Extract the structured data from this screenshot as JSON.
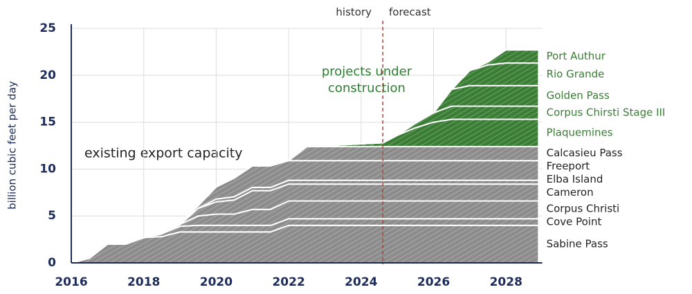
{
  "chart_data": {
    "type": "stacked_area",
    "y_label": "billion cubic feet per day",
    "annotations": {
      "history": "history",
      "forecast": "forecast",
      "existing": "existing export capacity",
      "construction": "projects under construction"
    },
    "forecast_start": 2024.6,
    "xlim": [
      2016,
      2029
    ],
    "xticks": [
      2016,
      2018,
      2020,
      2022,
      2024,
      2026,
      2028
    ],
    "ylim": [
      0,
      25
    ],
    "yticks": [
      0,
      5,
      10,
      15,
      20,
      25
    ],
    "grid": true,
    "x": [
      2016,
      2016.5,
      2017,
      2017.5,
      2018,
      2018.5,
      2019,
      2019.5,
      2020,
      2020.5,
      2021,
      2021.5,
      2022,
      2022.5,
      2024.6,
      2025,
      2025.5,
      2026,
      2026.5,
      2027,
      2027.5,
      2028,
      2028.9
    ],
    "series": [
      {
        "name": "Sabine Pass",
        "color": "#8c8c8c",
        "values": [
          0,
          0.5,
          2,
          2,
          2.7,
          2.8,
          3.3,
          3.3,
          3.3,
          3.3,
          3.3,
          3.3,
          4,
          4,
          4,
          4,
          4,
          4,
          4,
          4,
          4,
          4,
          4
        ]
      },
      {
        "name": "Cove Point",
        "color": "#8c8c8c",
        "values": [
          0,
          0,
          0,
          0,
          0,
          0.3,
          0.6,
          0.7,
          0.7,
          0.7,
          0.7,
          0.7,
          0.7,
          0.7,
          0.7,
          0.7,
          0.7,
          0.7,
          0.7,
          0.7,
          0.7,
          0.7,
          0.7
        ]
      },
      {
        "name": "Corpus Christi",
        "color": "#8c8c8c",
        "values": [
          0,
          0,
          0,
          0,
          0,
          0,
          0.2,
          1.0,
          1.2,
          1.2,
          1.7,
          1.7,
          1.9,
          1.9,
          1.9,
          1.9,
          1.9,
          1.9,
          1.9,
          1.9,
          1.9,
          1.9,
          1.9
        ]
      },
      {
        "name": "Cameron",
        "color": "#8c8c8c",
        "values": [
          0,
          0,
          0,
          0,
          0,
          0,
          0,
          0.8,
          1.3,
          1.5,
          2.0,
          2.0,
          1.8,
          1.8,
          1.8,
          1.8,
          1.8,
          1.8,
          1.8,
          1.8,
          1.8,
          1.8,
          1.8
        ]
      },
      {
        "name": "Elba Island",
        "color": "#8c8c8c",
        "values": [
          0,
          0,
          0,
          0,
          0,
          0,
          0,
          0,
          0.3,
          0.35,
          0.35,
          0.35,
          0.4,
          0.4,
          0.4,
          0.4,
          0.4,
          0.4,
          0.4,
          0.4,
          0.4,
          0.4,
          0.4
        ]
      },
      {
        "name": "Freeport",
        "color": "#8c8c8c",
        "values": [
          0,
          0,
          0,
          0,
          0,
          0,
          0,
          0.3,
          1.3,
          2.0,
          2.3,
          2.3,
          2.1,
          2.1,
          2.1,
          2.1,
          2.1,
          2.1,
          2.1,
          2.1,
          2.1,
          2.1,
          2.1
        ]
      },
      {
        "name": "Calcasieu Pass",
        "color": "#8c8c8c",
        "values": [
          0,
          0,
          0,
          0,
          0,
          0,
          0,
          0,
          0,
          0,
          0,
          0,
          0,
          1.5,
          1.5,
          1.5,
          1.5,
          1.5,
          1.5,
          1.5,
          1.5,
          1.5,
          1.5
        ]
      },
      {
        "name": "Plaquemines",
        "color": "#3a7d35",
        "values": [
          0,
          0,
          0,
          0,
          0,
          0,
          0,
          0,
          0,
          0,
          0,
          0,
          0,
          0,
          0.4,
          1.2,
          2.0,
          2.6,
          2.9,
          2.9,
          2.9,
          2.9,
          2.9
        ]
      },
      {
        "name": "Corpus Chirsti Stage III",
        "color": "#3a7d35",
        "values": [
          0,
          0,
          0,
          0,
          0,
          0,
          0,
          0,
          0,
          0,
          0,
          0,
          0,
          0,
          0,
          0,
          0.5,
          1.0,
          1.4,
          1.4,
          1.4,
          1.4,
          1.4
        ]
      },
      {
        "name": "Golden Pass",
        "color": "#3a7d35",
        "values": [
          0,
          0,
          0,
          0,
          0,
          0,
          0,
          0,
          0,
          0,
          0,
          0,
          0,
          0,
          0,
          0,
          0,
          0,
          1.8,
          2.2,
          2.2,
          2.2,
          2.2
        ]
      },
      {
        "name": "Rio Grande",
        "color": "#3a7d35",
        "values": [
          0,
          0,
          0,
          0,
          0,
          0,
          0,
          0,
          0,
          0,
          0,
          0,
          0,
          0,
          0,
          0,
          0,
          0,
          0,
          1.6,
          2.2,
          2.4,
          2.4
        ]
      },
      {
        "name": "Port Authur",
        "color": "#3a7d35",
        "values": [
          0,
          0,
          0,
          0,
          0,
          0,
          0,
          0,
          0,
          0,
          0,
          0,
          0,
          0,
          0,
          0,
          0,
          0,
          0,
          0,
          0.3,
          1.4,
          1.4
        ]
      }
    ]
  }
}
